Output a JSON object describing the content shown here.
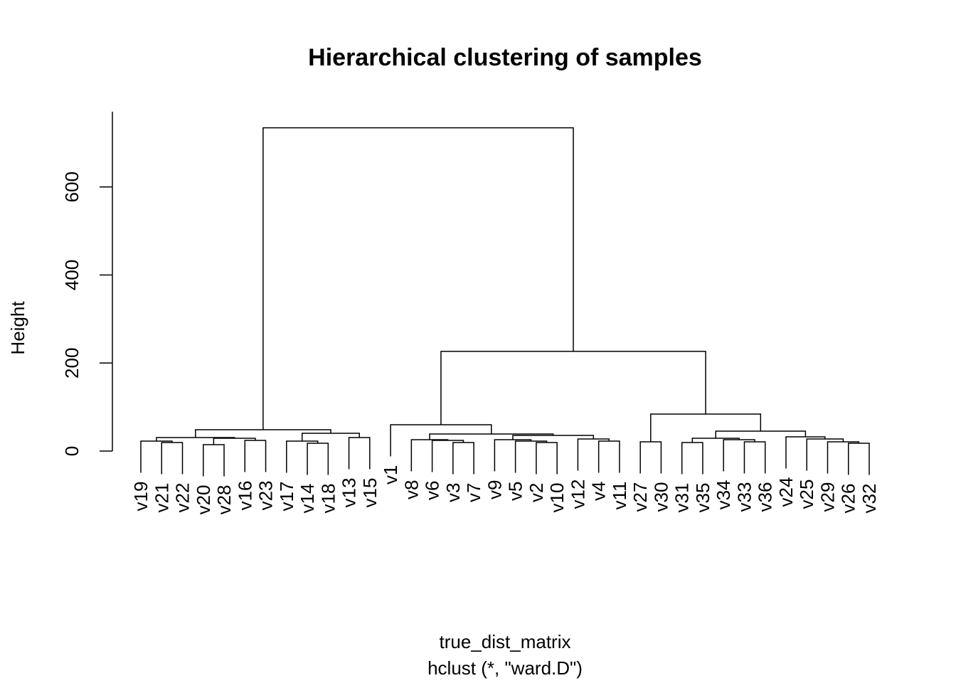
{
  "chart_data": {
    "type": "dendrogram",
    "title": "Hierarchical clustering of samples",
    "xlabel": "true_dist_matrix",
    "subtitle": "hclust (*, \"ward.D\")",
    "ylabel": "Height",
    "ylim": [
      0,
      771
    ],
    "yticks": [
      0,
      200,
      400,
      600
    ],
    "labels": [
      "v19",
      "v21",
      "v22",
      "v20",
      "v28",
      "v16",
      "v23",
      "v17",
      "v14",
      "v18",
      "v13",
      "v15",
      "v1",
      "v8",
      "v6",
      "v3",
      "v7",
      "v9",
      "v5",
      "v2",
      "v10",
      "v12",
      "v4",
      "v11",
      "v27",
      "v30",
      "v31",
      "v35",
      "v34",
      "v33",
      "v36",
      "v24",
      "v25",
      "v29",
      "v26",
      "v32"
    ],
    "merges": [
      {
        "children": [
          -2,
          -3
        ],
        "height": 19.4
      },
      {
        "children": [
          -1,
          1
        ],
        "height": 22.6
      },
      {
        "children": [
          -4,
          -5
        ],
        "height": 14.6
      },
      {
        "children": [
          -6,
          -7
        ],
        "height": 24.3
      },
      {
        "children": [
          3,
          4
        ],
        "height": 29.1
      },
      {
        "children": [
          2,
          5
        ],
        "height": 30.7
      },
      {
        "children": [
          -9,
          -10
        ],
        "height": 17.8
      },
      {
        "children": [
          -8,
          7
        ],
        "height": 22.6
      },
      {
        "children": [
          -11,
          -12
        ],
        "height": 30.7
      },
      {
        "children": [
          8,
          9
        ],
        "height": 40.4
      },
      {
        "children": [
          6,
          10
        ],
        "height": 48.5
      },
      {
        "children": [
          -16,
          -17
        ],
        "height": 19.4
      },
      {
        "children": [
          -15,
          12
        ],
        "height": 24.3
      },
      {
        "children": [
          -14,
          13
        ],
        "height": 25.9
      },
      {
        "children": [
          -20,
          -21
        ],
        "height": 19.4
      },
      {
        "children": [
          -19,
          15
        ],
        "height": 22.6
      },
      {
        "children": [
          -18,
          16
        ],
        "height": 25.9
      },
      {
        "children": [
          -23,
          -24
        ],
        "height": 22.6
      },
      {
        "children": [
          -22,
          18
        ],
        "height": 27.5
      },
      {
        "children": [
          17,
          19
        ],
        "height": 35.6
      },
      {
        "children": [
          14,
          20
        ],
        "height": 38.8
      },
      {
        "children": [
          -13,
          21
        ],
        "height": 59.8
      },
      {
        "children": [
          -25,
          -26
        ],
        "height": 21
      },
      {
        "children": [
          -27,
          -28
        ],
        "height": 19.4
      },
      {
        "children": [
          -30,
          -31
        ],
        "height": 21
      },
      {
        "children": [
          -29,
          25
        ],
        "height": 25.9
      },
      {
        "children": [
          24,
          26
        ],
        "height": 29.1
      },
      {
        "children": [
          -35,
          -36
        ],
        "height": 17.8
      },
      {
        "children": [
          -34,
          28
        ],
        "height": 21
      },
      {
        "children": [
          -33,
          29
        ],
        "height": 27.5
      },
      {
        "children": [
          -32,
          30
        ],
        "height": 32.3
      },
      {
        "children": [
          27,
          31
        ],
        "height": 45.3
      },
      {
        "children": [
          23,
          32
        ],
        "height": 84.1
      },
      {
        "children": [
          22,
          33
        ],
        "height": 226.4
      },
      {
        "children": [
          11,
          34
        ],
        "height": 734.5
      }
    ]
  }
}
